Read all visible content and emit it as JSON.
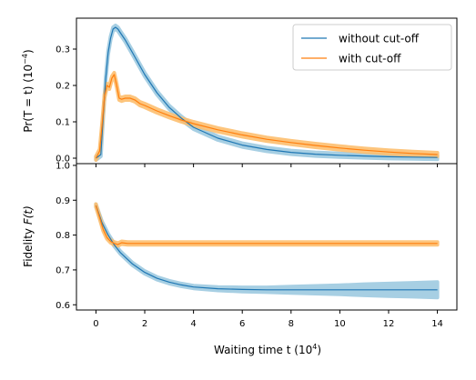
{
  "chart_data": [
    {
      "type": "line",
      "panel": "top",
      "ylabel": "Pr(T = t) (10",
      "ylabel_exp": "−4",
      "ylabel_close": ")",
      "xlim": [
        -0.8,
        14.8
      ],
      "ylim": [
        -0.015,
        0.385
      ],
      "yticks": [
        0.0,
        0.1,
        0.2,
        0.3
      ],
      "ytick_labels": [
        "0.0",
        "0.1",
        "0.2",
        "0.3"
      ],
      "legend": {
        "location": "upper right"
      },
      "series": [
        {
          "name": "without cut-off",
          "color": "#1f77b4",
          "band_color": "#9ecae1",
          "x": [
            0,
            0.2,
            0.3,
            0.4,
            0.5,
            0.6,
            0.7,
            0.8,
            0.9,
            1.0,
            1.2,
            1.5,
            2,
            2.5,
            3,
            3.5,
            4,
            5,
            6,
            7,
            8,
            9,
            10,
            11,
            12,
            13,
            14
          ],
          "y": [
            0,
            0.01,
            0.12,
            0.22,
            0.29,
            0.33,
            0.355,
            0.36,
            0.355,
            0.345,
            0.325,
            0.29,
            0.23,
            0.18,
            0.14,
            0.11,
            0.085,
            0.055,
            0.036,
            0.024,
            0.016,
            0.011,
            0.008,
            0.006,
            0.004,
            0.003,
            0.002
          ]
        },
        {
          "name": "with cut-off",
          "color": "#ff7f0e",
          "band_color": "#fdbf6f",
          "x": [
            0,
            0.15,
            0.25,
            0.35,
            0.45,
            0.55,
            0.65,
            0.75,
            0.85,
            0.95,
            1.05,
            1.2,
            1.4,
            1.6,
            1.8,
            2.0,
            2.5,
            3,
            3.5,
            4,
            5,
            6,
            7,
            8,
            9,
            10,
            11,
            12,
            13,
            14
          ],
          "y": [
            0,
            0.02,
            0.09,
            0.17,
            0.2,
            0.195,
            0.22,
            0.23,
            0.2,
            0.165,
            0.162,
            0.165,
            0.165,
            0.16,
            0.15,
            0.145,
            0.13,
            0.117,
            0.105,
            0.095,
            0.078,
            0.064,
            0.052,
            0.043,
            0.035,
            0.028,
            0.022,
            0.017,
            0.013,
            0.01
          ]
        }
      ]
    },
    {
      "type": "line",
      "panel": "bottom",
      "xlabel": "Waiting time t (10",
      "xlabel_exp": "4",
      "xlabel_close": ")",
      "ylabel": "Fidelity",
      "ylabel_var": "F(t)",
      "xlim": [
        -0.8,
        14.8
      ],
      "ylim": [
        0.585,
        1.005
      ],
      "xticks": [
        0,
        2,
        4,
        6,
        8,
        10,
        12,
        14
      ],
      "xtick_labels": [
        "0",
        "2",
        "4",
        "6",
        "8",
        "10",
        "12",
        "14"
      ],
      "yticks": [
        0.6,
        0.7,
        0.8,
        0.9,
        1.0
      ],
      "ytick_labels": [
        "0.6",
        "0.7",
        "0.8",
        "0.9",
        "1.0"
      ],
      "series": [
        {
          "name": "without cut-off",
          "color": "#1f77b4",
          "band_color": "#9ecae1",
          "x": [
            0,
            0.25,
            0.5,
            0.75,
            1,
            1.5,
            2,
            2.5,
            3,
            3.5,
            4,
            5,
            6,
            7,
            8,
            9,
            10,
            11,
            12,
            13,
            14
          ],
          "y": [
            0.885,
            0.835,
            0.8,
            0.772,
            0.75,
            0.717,
            0.693,
            0.676,
            0.665,
            0.657,
            0.651,
            0.646,
            0.644,
            0.643,
            0.643,
            0.643,
            0.643,
            0.643,
            0.643,
            0.643,
            0.643
          ],
          "band_halfwidth": [
            0.004,
            0.004,
            0.004,
            0.004,
            0.004,
            0.004,
            0.004,
            0.004,
            0.004,
            0.004,
            0.004,
            0.005,
            0.006,
            0.007,
            0.009,
            0.011,
            0.013,
            0.016,
            0.018,
            0.02,
            0.022
          ]
        },
        {
          "name": "with cut-off",
          "color": "#ff7f0e",
          "band_color": "#fdbf6f",
          "x": [
            0,
            0.15,
            0.3,
            0.45,
            0.6,
            0.75,
            0.9,
            1.05,
            1.3,
            2,
            3,
            4,
            6,
            8,
            10,
            12,
            14
          ],
          "y": [
            0.885,
            0.85,
            0.815,
            0.793,
            0.782,
            0.776,
            0.773,
            0.778,
            0.776,
            0.776,
            0.776,
            0.776,
            0.776,
            0.776,
            0.776,
            0.776,
            0.776
          ],
          "band_halfwidth": [
            0.004,
            0.004,
            0.004,
            0.004,
            0.004,
            0.004,
            0.004,
            0.004,
            0.004,
            0.004,
            0.004,
            0.004,
            0.004,
            0.004,
            0.004,
            0.004,
            0.004
          ]
        }
      ]
    }
  ]
}
